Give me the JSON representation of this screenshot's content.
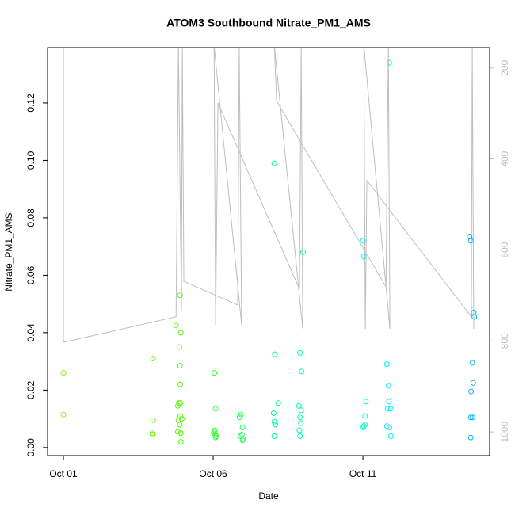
{
  "chart_data": {
    "type": "scatter",
    "title": "ATOM3 Southbound Nitrate_PM1_AMS",
    "x_label": "Date",
    "y_label": "Nitrate_PM1_AMS",
    "xlim": [
      0.47,
      15.23
    ],
    "xticks": [
      {
        "value": 1,
        "label": "Oct 01"
      },
      {
        "value": 6,
        "label": "Oct 06"
      },
      {
        "value": 11,
        "label": "Oct 11"
      }
    ],
    "ylim": [
      -0.0028,
      0.1393
    ],
    "yticks": [
      {
        "value": 0,
        "label": "0.00"
      },
      {
        "value": 0.02,
        "label": "0.02"
      },
      {
        "value": 0.04,
        "label": "0.04"
      },
      {
        "value": 0.06,
        "label": "0.06"
      },
      {
        "value": 0.08,
        "label": "0.08"
      },
      {
        "value": 0.1,
        "label": "0.10"
      },
      {
        "value": 0.12,
        "label": "0.12"
      }
    ],
    "y2lim": [
      1052,
      155
    ],
    "y2ticks": [
      200,
      400,
      600,
      800,
      1000
    ],
    "y2_color": "#bebebe",
    "series": [
      {
        "type": "line",
        "axis": "y2",
        "color": "#bebebe",
        "x": [
          1.0,
          1.0,
          4.76,
          4.84,
          4.94,
          4.97,
          5.02,
          6.82,
          6.87,
          6.95,
          6.03,
          6.08,
          6.16,
          8.88,
          8.94,
          8.99,
          8.04,
          8.12,
          11.77,
          11.85,
          11.9,
          11.03,
          11.08,
          11.13,
          14.62,
          14.65,
          14.7
        ],
        "values": [
          150,
          803,
          747,
          150,
          733,
          150,
          669,
          721,
          150,
          765,
          150,
          765,
          277,
          686,
          150,
          773,
          150,
          273,
          681,
          150,
          773,
          150,
          773,
          447,
          747,
          150,
          773
        ]
      },
      {
        "color": "#80ff00",
        "x": [
          1.0,
          1.0
        ],
        "values": [
          0.026,
          0.0115
        ]
      },
      {
        "color": "#66ff00",
        "x": [
          3.99,
          3.99,
          3.97,
          3.98
        ],
        "values": [
          0.031,
          0.0095,
          0.005,
          0.0045
        ]
      },
      {
        "color": "#4dff00",
        "x": [
          4.89,
          4.76,
          4.92,
          4.87,
          4.89,
          4.9,
          4.86,
          4.9,
          4.82,
          4.9,
          4.95,
          4.84,
          4.88,
          4.82,
          4.92,
          4.92
        ],
        "values": [
          0.053,
          0.0425,
          0.04,
          0.035,
          0.0285,
          0.022,
          0.0155,
          0.0155,
          0.0145,
          0.011,
          0.01,
          0.0095,
          0.008,
          0.0055,
          0.005,
          0.002
        ]
      },
      {
        "color": "#33ff33",
        "x": [
          6.04,
          6.08,
          6.05,
          6.02,
          6.07,
          6.1,
          6.08,
          6.03
        ],
        "values": [
          0.026,
          0.0135,
          0.006,
          0.005,
          0.0045,
          0.004,
          0.0035,
          0.0055
        ]
      },
      {
        "color": "#1aff55",
        "x": [
          6.93,
          6.88,
          6.98,
          6.96,
          6.9,
          7.0,
          6.98
        ],
        "values": [
          0.0115,
          0.0105,
          0.007,
          0.0045,
          0.004,
          0.003,
          0.0025
        ]
      },
      {
        "color": "#00ff88",
        "x": [
          8.04,
          8.06,
          8.17,
          8.02,
          8.04,
          8.08,
          8.04
        ],
        "values": [
          0.099,
          0.0325,
          0.0155,
          0.012,
          0.009,
          0.008,
          0.004
        ]
      },
      {
        "color": "#00ffaa",
        "x": [
          9.0,
          8.9,
          8.95,
          8.86,
          8.94,
          8.9,
          8.93,
          8.88,
          8.9
        ],
        "values": [
          0.068,
          0.033,
          0.0265,
          0.0145,
          0.013,
          0.0105,
          0.0085,
          0.006,
          0.004
        ]
      },
      {
        "color": "#00ffd5",
        "x": [
          11.0,
          11.03,
          11.1,
          11.07,
          11.07,
          11.0,
          11.03
        ],
        "values": [
          0.072,
          0.0665,
          0.016,
          0.011,
          0.008,
          0.007,
          0.0075
        ]
      },
      {
        "color": "#00eeff",
        "x": [
          11.88,
          11.8,
          11.85,
          11.87,
          11.82,
          11.93,
          11.8,
          11.88,
          11.93
        ],
        "values": [
          0.134,
          0.029,
          0.0215,
          0.016,
          0.0135,
          0.0135,
          0.0075,
          0.007,
          0.004
        ]
      },
      {
        "color": "#00b0ff",
        "x": [
          14.56,
          14.6,
          14.7,
          14.72,
          14.65,
          14.68,
          14.61,
          14.6,
          14.66,
          14.6
        ],
        "values": [
          0.0735,
          0.072,
          0.047,
          0.0455,
          0.0295,
          0.0225,
          0.0195,
          0.0105,
          0.0105,
          0.0035
        ]
      }
    ]
  }
}
